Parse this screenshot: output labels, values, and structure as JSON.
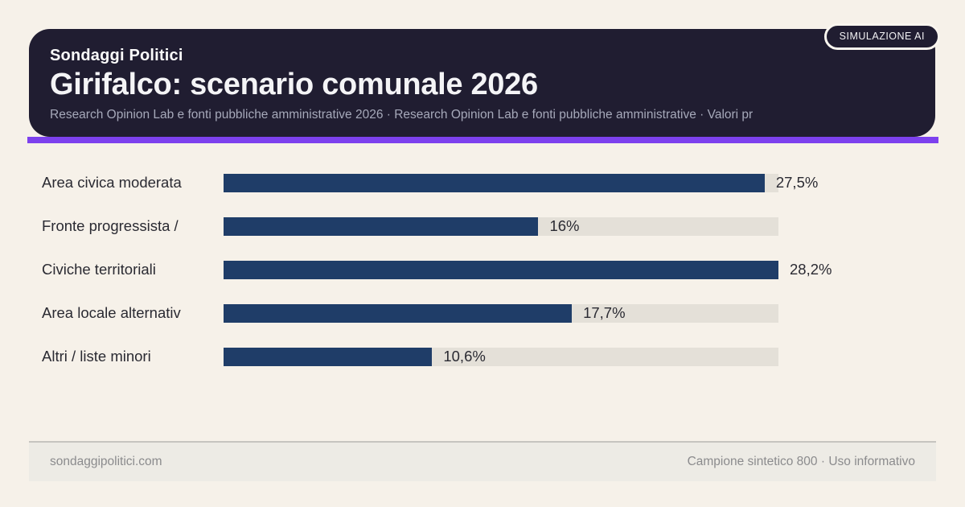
{
  "header": {
    "badge": "SIMULAZIONE AI",
    "kicker": "Sondaggi Politici",
    "title": "Girifalco: scenario comunale 2026",
    "subtitle": "Research Opinion Lab e fonti pubbliche amministrative 2026 · Research Opinion Lab e fonti pubbliche amministrative · Valori pr"
  },
  "chart_data": {
    "type": "bar",
    "orientation": "horizontal",
    "title": "Girifalco: scenario comunale 2026",
    "categories": [
      "Area civica moderata",
      "Fronte progressista /",
      "Civiche territoriali",
      "Area locale alternativ",
      "Altri / liste minori"
    ],
    "values": [
      27.5,
      16,
      28.2,
      17.7,
      10.6
    ],
    "value_labels": [
      "27,5%",
      "16%",
      "28,2%",
      "17,7%",
      "10,6%"
    ],
    "unit": "%",
    "xlim": [
      0,
      28.2
    ],
    "grid": false,
    "legend": false,
    "colors": {
      "bar": "#1f3d68",
      "track": "#e4e0d8",
      "accent": "#7d41ee",
      "card_background": "#201d31",
      "page_background": "#f6f1e9"
    }
  },
  "footer": {
    "left": "sondaggipolitici.com",
    "right": "Campione sintetico 800 · Uso informativo"
  }
}
